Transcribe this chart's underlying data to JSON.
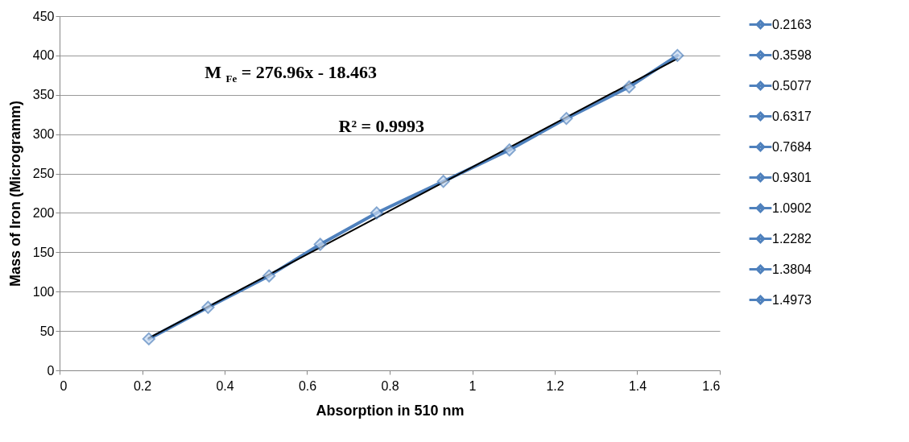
{
  "chart_data": {
    "type": "line",
    "xlabel": "Absorption  in  510 nm",
    "ylabel": "Mass of Iron  (Microgramm)",
    "x": [
      0.2163,
      0.3598,
      0.5077,
      0.6317,
      0.7684,
      0.9301,
      1.0902,
      1.2282,
      1.3804,
      1.4973
    ],
    "xlim": [
      0,
      1.6
    ],
    "xticks": [
      0,
      0.2,
      0.4,
      0.6,
      0.8,
      1,
      1.2,
      1.4,
      1.6
    ],
    "ylim": [
      0,
      450
    ],
    "yticks": [
      0,
      50,
      100,
      150,
      200,
      250,
      300,
      350,
      400,
      450
    ],
    "grid": "y",
    "legend": "right",
    "marker": "diamond",
    "line_style": "solid",
    "annotations": [
      "M $_{Fe}$ = 276.96x - 18.463",
      "R² = 0.9993"
    ],
    "series": [
      {
        "color": "#4f81bd",
        "marker": "none",
        "values": [
          40,
          80,
          120,
          160,
          200,
          240,
          280,
          320,
          360,
          400
        ]
      },
      {
        "type": "line",
        "color": "#000000",
        "marker": "none",
        "x": [
          0.2163,
          1.4973
        ],
        "values": [
          41,
          396
        ]
      },
      {
        "type": "scatter",
        "name": "0.2163",
        "color": "#4f81bd",
        "x": [
          0.2163
        ],
        "values": [
          40
        ]
      },
      {
        "type": "scatter",
        "name": "0.3598",
        "color": "#4f81bd",
        "x": [
          0.3598
        ],
        "values": [
          80
        ]
      },
      {
        "type": "scatter",
        "name": "0.5077",
        "color": "#4f81bd",
        "x": [
          0.5077
        ],
        "values": [
          120
        ]
      },
      {
        "type": "scatter",
        "name": "0.6317",
        "color": "#4f81bd",
        "x": [
          0.6317
        ],
        "values": [
          160
        ]
      },
      {
        "type": "scatter",
        "name": "0.7684",
        "color": "#4f81bd",
        "x": [
          0.7684
        ],
        "values": [
          200
        ]
      },
      {
        "type": "scatter",
        "name": "0.9301",
        "color": "#4f81bd",
        "x": [
          0.9301
        ],
        "values": [
          240
        ]
      },
      {
        "type": "scatter",
        "name": "1.0902",
        "color": "#4f81bd",
        "x": [
          1.0902
        ],
        "values": [
          280
        ]
      },
      {
        "type": "scatter",
        "name": "1.2282",
        "color": "#4f81bd",
        "x": [
          1.2282
        ],
        "values": [
          320
        ]
      },
      {
        "type": "scatter",
        "name": "1.3804",
        "color": "#4f81bd",
        "x": [
          1.3804
        ],
        "values": [
          360
        ]
      },
      {
        "type": "scatter",
        "name": "1.4973",
        "color": "#4f81bd",
        "x": [
          1.4973
        ],
        "values": [
          400
        ]
      }
    ]
  }
}
